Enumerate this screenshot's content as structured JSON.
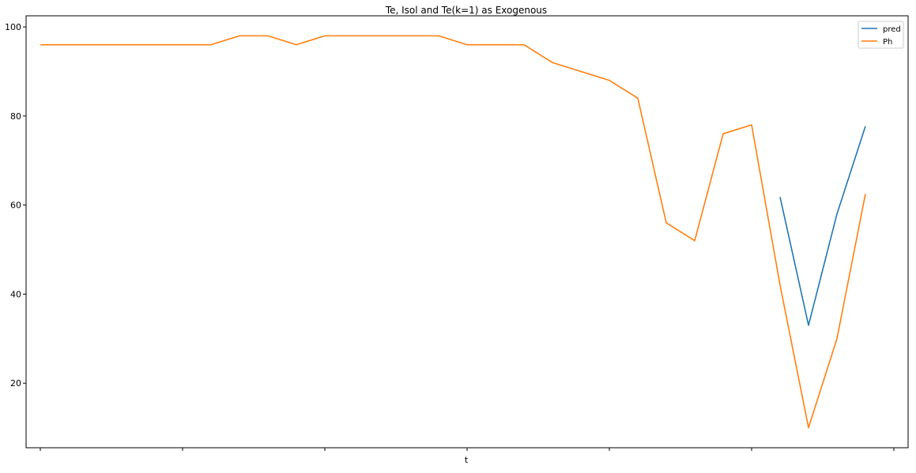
{
  "chart_data": {
    "type": "line",
    "title": "Te, Isol and Te(k=1) as Exogenous",
    "xlabel": "t",
    "ylabel": "",
    "ylim": [
      5.5,
      102.5
    ],
    "yticks": [
      20,
      40,
      60,
      80,
      100
    ],
    "xlim": [
      -0.5,
      30.5
    ],
    "xticks": [
      0,
      5,
      10,
      15,
      20,
      25,
      30
    ],
    "grid": false,
    "legend_position": "top-right",
    "series": [
      {
        "name": "pred",
        "color": "#1f77b4",
        "x": [
          26,
          27,
          28,
          29
        ],
        "values": [
          61.8,
          33.0,
          58.0,
          77.7
        ]
      },
      {
        "name": "Ph",
        "color": "#ff7f0e",
        "x": [
          0,
          1,
          2,
          3,
          4,
          5,
          6,
          7,
          8,
          9,
          10,
          11,
          12,
          13,
          14,
          15,
          16,
          17,
          18,
          19,
          20,
          21,
          22,
          23,
          24,
          25,
          26,
          27,
          28,
          29
        ],
        "values": [
          96,
          96,
          96,
          96,
          96,
          96,
          96,
          98,
          98,
          96,
          98,
          98,
          98,
          98,
          98,
          96,
          96,
          96,
          92,
          90,
          88,
          84,
          56,
          52,
          76,
          78,
          42,
          10,
          30,
          62.5
        ]
      }
    ]
  }
}
